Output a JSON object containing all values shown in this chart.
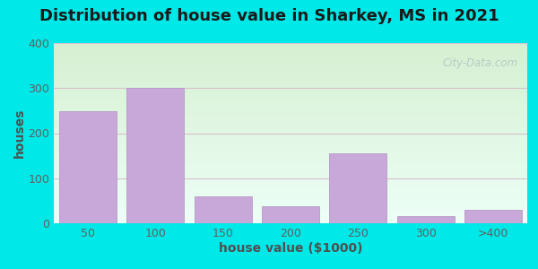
{
  "title": "Distribution of house value in Sharkey, MS in 2021",
  "xlabel": "house value ($1000)",
  "ylabel": "houses",
  "categories": [
    "50",
    "100",
    "150",
    "200",
    "250",
    "300",
    ">400"
  ],
  "values": [
    248,
    300,
    60,
    38,
    155,
    15,
    30
  ],
  "bar_color": "#c8a8d8",
  "bar_edge_color": "#b898c8",
  "ylim": [
    0,
    400
  ],
  "yticks": [
    0,
    100,
    200,
    300,
    400
  ],
  "background_outer": "#00e8e8",
  "grad_top_left": "#d8f0d0",
  "grad_bottom_right": "#e8fff8",
  "grid_color": "#d8c0d0",
  "watermark": "City-Data.com",
  "title_fontsize": 13,
  "axis_label_fontsize": 10,
  "tick_label_color": "#606060",
  "axis_label_color": "#505050"
}
